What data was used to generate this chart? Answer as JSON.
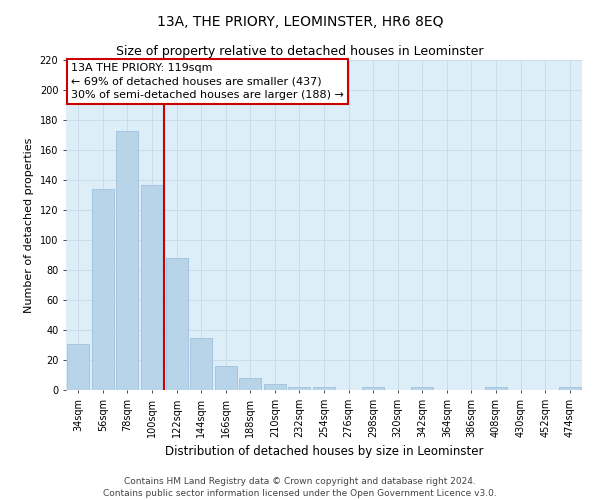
{
  "title": "13A, THE PRIORY, LEOMINSTER, HR6 8EQ",
  "subtitle": "Size of property relative to detached houses in Leominster",
  "xlabel": "Distribution of detached houses by size in Leominster",
  "ylabel": "Number of detached properties",
  "bar_labels": [
    "34sqm",
    "56sqm",
    "78sqm",
    "100sqm",
    "122sqm",
    "144sqm",
    "166sqm",
    "188sqm",
    "210sqm",
    "232sqm",
    "254sqm",
    "276sqm",
    "298sqm",
    "320sqm",
    "342sqm",
    "364sqm",
    "386sqm",
    "408sqm",
    "430sqm",
    "452sqm",
    "474sqm"
  ],
  "bar_values": [
    31,
    134,
    173,
    137,
    88,
    35,
    16,
    8,
    4,
    2,
    2,
    0,
    2,
    0,
    2,
    0,
    0,
    2,
    0,
    0,
    2
  ],
  "bar_color": "#b8d4e8",
  "bar_edge_color": "#a0c0dc",
  "vline_x_index": 4,
  "vline_color": "#cc0000",
  "annotation_line1": "13A THE PRIORY: 119sqm",
  "annotation_line2": "← 69% of detached houses are smaller (437)",
  "annotation_line3": "30% of semi-detached houses are larger (188) →",
  "annotation_box_color": "#ffffff",
  "annotation_box_edge": "#cc0000",
  "ylim": [
    0,
    220
  ],
  "yticks": [
    0,
    20,
    40,
    60,
    80,
    100,
    120,
    140,
    160,
    180,
    200,
    220
  ],
  "grid_color": "#c8dcea",
  "bg_color": "#ddeef8",
  "footer_text": "Contains HM Land Registry data © Crown copyright and database right 2024.\nContains public sector information licensed under the Open Government Licence v3.0.",
  "title_fontsize": 10,
  "subtitle_fontsize": 9,
  "xlabel_fontsize": 8.5,
  "ylabel_fontsize": 8,
  "tick_fontsize": 7,
  "annotation_fontsize": 8,
  "footer_fontsize": 6.5
}
